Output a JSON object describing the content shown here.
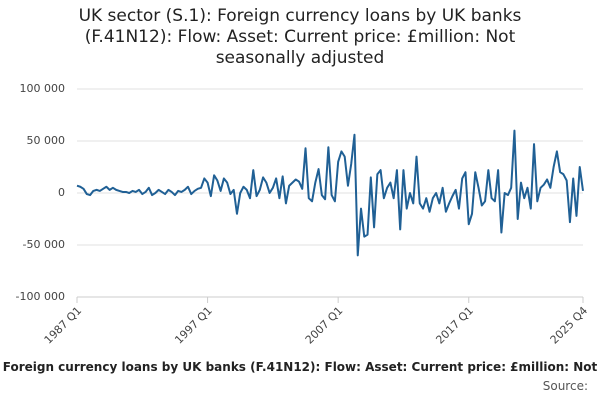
{
  "chart_data": {
    "type": "line",
    "title": "UK sector (S.1): Foreign currency loans by UK banks (F.41N12): Flow: Asset: Current price: £million: Not seasonally adjusted",
    "source": "Source:",
    "categories": [
      "1987 Q1",
      null,
      null,
      null,
      null,
      null,
      null,
      null,
      null,
      null,
      null,
      null,
      null,
      null,
      null,
      null,
      null,
      null,
      null,
      null,
      null,
      null,
      null,
      null,
      null,
      null,
      null,
      null,
      null,
      null,
      null,
      null,
      null,
      null,
      null,
      null,
      null,
      null,
      null,
      null,
      "1997 Q1",
      null,
      null,
      null,
      null,
      null,
      null,
      null,
      null,
      null,
      null,
      null,
      null,
      null,
      null,
      null,
      null,
      null,
      null,
      null,
      null,
      null,
      null,
      null,
      null,
      null,
      null,
      null,
      null,
      null,
      null,
      null,
      null,
      null,
      null,
      null,
      null,
      null,
      null,
      null,
      "2007 Q1",
      null,
      null,
      null,
      null,
      null,
      null,
      null,
      null,
      null,
      null,
      null,
      null,
      null,
      null,
      null,
      null,
      null,
      null,
      null,
      null,
      null,
      null,
      null,
      null,
      null,
      null,
      null,
      null,
      null,
      null,
      null,
      null,
      null,
      null,
      null,
      null,
      null,
      null,
      null,
      "2017 Q1",
      null,
      null,
      null,
      null,
      null,
      null,
      null,
      null,
      null,
      null,
      null,
      null,
      null,
      null,
      null,
      null,
      null,
      null,
      null,
      null,
      null,
      null,
      null,
      null,
      null,
      null,
      null,
      null,
      null,
      null,
      null,
      null,
      null,
      null,
      "2025 Q4"
    ],
    "series": [
      {
        "name": "Foreign currency loans by UK banks (F.41N12): Flow: Asset: Current price: £million: Not",
        "color": "#206095",
        "values": [
          7000,
          6000,
          4000,
          -1000,
          -2000,
          2000,
          3000,
          2000,
          4000,
          6000,
          3000,
          5000,
          3000,
          2000,
          1000,
          1000,
          0,
          2000,
          1000,
          3000,
          -1000,
          1000,
          5000,
          -2000,
          0,
          3000,
          1000,
          -1000,
          3000,
          1000,
          -2000,
          2000,
          1000,
          3000,
          6000,
          -1000,
          2000,
          4000,
          5000,
          14000,
          10000,
          -3000,
          17000,
          12000,
          2000,
          14000,
          10000,
          -1000,
          3000,
          -20000,
          0,
          6000,
          3000,
          -5000,
          22000,
          -3000,
          3000,
          15000,
          10000,
          0,
          5000,
          14000,
          -5000,
          16000,
          -10000,
          7000,
          10000,
          13000,
          11000,
          4000,
          43000,
          -5000,
          -8000,
          10000,
          23000,
          -2000,
          -6000,
          44000,
          -2000,
          -8000,
          30000,
          40000,
          35000,
          7000,
          28000,
          56000,
          -60000,
          -15000,
          -42000,
          -40000,
          15000,
          -33000,
          18000,
          22000,
          -5000,
          5000,
          10000,
          -5000,
          22000,
          -35000,
          22000,
          -15000,
          0,
          -10000,
          35000,
          -10000,
          -15000,
          -5000,
          -18000,
          -5000,
          0,
          -10000,
          5000,
          -18000,
          -10000,
          -3000,
          3000,
          -15000,
          14000,
          20000,
          -30000,
          -20000,
          20000,
          5000,
          -12000,
          -8000,
          22000,
          -5000,
          -8000,
          22000,
          -38000,
          0,
          -2000,
          5000,
          60000,
          -25000,
          10000,
          -5000,
          5000,
          -15000,
          47000,
          -8000,
          5000,
          8000,
          13000,
          5000,
          25000,
          40000,
          20000,
          18000,
          12000,
          -28000,
          14000,
          -22000,
          25000,
          2000
        ]
      }
    ],
    "ylim": [
      -100000,
      100000
    ],
    "yticks": [
      {
        "value": -100000,
        "label": "-100 000"
      },
      {
        "value": -50000,
        "label": "-50 000"
      },
      0,
      {
        "value": 50000,
        "label": "50 000"
      },
      {
        "value": 100000,
        "label": "100 000"
      }
    ],
    "grid": true
  }
}
